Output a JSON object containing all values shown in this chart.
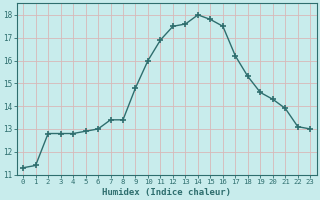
{
  "x": [
    0,
    1,
    2,
    3,
    4,
    5,
    6,
    7,
    8,
    9,
    10,
    11,
    12,
    13,
    14,
    15,
    16,
    17,
    18,
    19,
    20,
    21,
    22,
    23
  ],
  "y": [
    11.3,
    11.4,
    12.8,
    12.8,
    12.8,
    12.9,
    13.0,
    13.4,
    13.4,
    14.8,
    16.0,
    16.9,
    17.5,
    17.6,
    18.0,
    17.8,
    17.5,
    16.2,
    15.3,
    14.6,
    14.3,
    13.9,
    13.1,
    13.0
  ],
  "line_color": "#2e6e6e",
  "marker": "+",
  "marker_size": 4,
  "bg_color": "#c8ecec",
  "grid_color": "#d8b8b8",
  "axes_color": "#2e6e6e",
  "xlabel": "Humidex (Indice chaleur)",
  "ylim": [
    11,
    18.5
  ],
  "xlim": [
    -0.5,
    23.5
  ],
  "yticks": [
    11,
    12,
    13,
    14,
    15,
    16,
    17,
    18
  ],
  "xticks": [
    0,
    1,
    2,
    3,
    4,
    5,
    6,
    7,
    8,
    9,
    10,
    11,
    12,
    13,
    14,
    15,
    16,
    17,
    18,
    19,
    20,
    21,
    22,
    23
  ]
}
